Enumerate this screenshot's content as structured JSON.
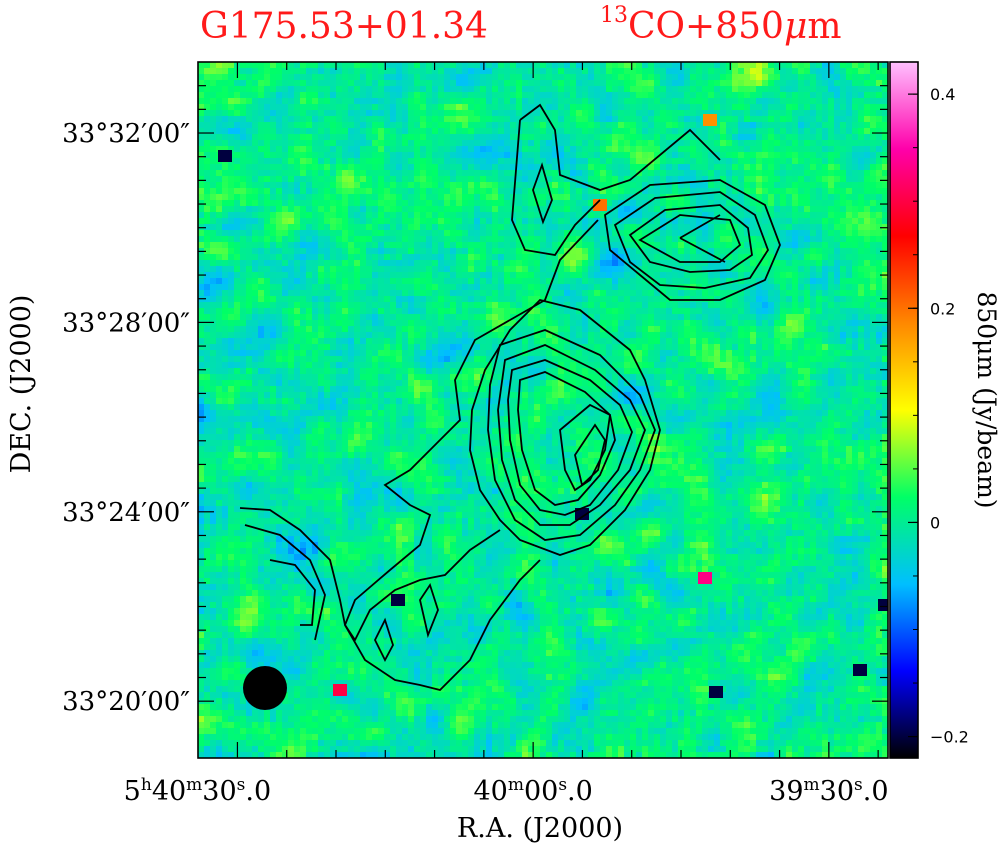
{
  "chart_data": {
    "type": "heatmap",
    "title_left": "G175.53+01.34",
    "title_right_sup": "13",
    "title_right_main": "CO+850",
    "title_right_mu": "μ",
    "title_right_tail": "m",
    "title_color": "#ff1a1a",
    "xlabel": "R.A.  (J2000)",
    "ylabel": "DEC.  (J2000)",
    "x_ticks": [
      {
        "h": "5",
        "hs": "h",
        "m": "40",
        "ms": "m",
        "s": "30",
        "ss": "s",
        "f": ".0",
        "ra_sec": 30
      },
      {
        "h": "",
        "hs": "",
        "m": "40",
        "ms": "m",
        "s": "00",
        "ss": "s",
        "f": ".0",
        "ra_sec": 0
      },
      {
        "h": "",
        "hs": "",
        "m": "39",
        "ms": "m",
        "s": "30",
        "ss": "s",
        "f": ".0",
        "ra_sec": -30
      }
    ],
    "y_ticks": [
      {
        "label": "33°32′00″",
        "dec_arcmin": 12
      },
      {
        "label": "33°28′00″",
        "dec_arcmin": 8
      },
      {
        "label": "33°24′00″",
        "dec_arcmin": 4
      },
      {
        "label": "33°20′00″",
        "dec_arcmin": 0
      }
    ],
    "colorbar": {
      "label": "850μm  (Jy/beam)",
      "range": [
        -0.22,
        0.43
      ],
      "ticks": [
        {
          "label": "0.4",
          "value": 0.4
        },
        {
          "label": "0.2",
          "value": 0.2
        },
        {
          "label": "0",
          "value": 0.0
        },
        {
          "label": "−0.2",
          "value": -0.2
        }
      ],
      "stops": [
        "#000000",
        "#0000ff",
        "#00bfff",
        "#00ff66",
        "#ffff00",
        "#ff8800",
        "#ff0000",
        "#ff00aa",
        "#ffc0ff"
      ]
    },
    "beam": "filled circle, lower-left",
    "contours": "13CO integrated intensity, black lines"
  }
}
